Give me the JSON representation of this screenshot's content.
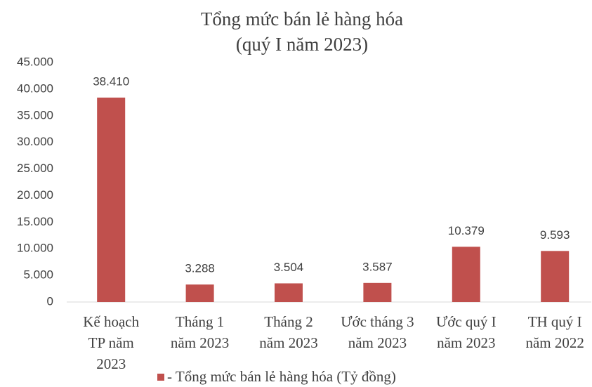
{
  "chart_data": {
    "type": "bar",
    "title": "Tổng mức bán lẻ hàng hóa",
    "subtitle": "(quý I năm 2023)",
    "categories": [
      [
        "Kế hoạch",
        "TP năm",
        "2023"
      ],
      [
        "Tháng 1",
        "năm 2023"
      ],
      [
        "Tháng 2",
        "năm 2023"
      ],
      [
        "Ước tháng 3",
        "năm 2023"
      ],
      [
        "Ước quý I",
        "năm 2023"
      ],
      [
        "TH quý I",
        "năm 2022"
      ]
    ],
    "series": [
      {
        "name": "- Tổng mức bán lẻ hàng hóa (Tỷ đồng)",
        "color": "#c0504d",
        "values": [
          38410,
          3288,
          3504,
          3587,
          10379,
          9593
        ],
        "value_labels": [
          "38.410",
          "3.288",
          "3.504",
          "3.587",
          "10.379",
          "9.593"
        ]
      }
    ],
    "ylim": [
      0,
      45000
    ],
    "yticks": [
      0,
      {
        "value": 5000,
        "label": "5.000"
      },
      {
        "value": 10000,
        "label": "10.000"
      },
      {
        "value": 15000,
        "label": "15.000"
      },
      {
        "value": 20000,
        "label": "20.000"
      },
      {
        "value": 25000,
        "label": "25.000"
      },
      {
        "value": 30000,
        "label": "30.000"
      },
      {
        "value": 35000,
        "label": "35.000"
      },
      {
        "value": 40000,
        "label": "40.000"
      },
      {
        "value": 45000,
        "label": "45.000"
      }
    ],
    "legend": "bottom"
  }
}
